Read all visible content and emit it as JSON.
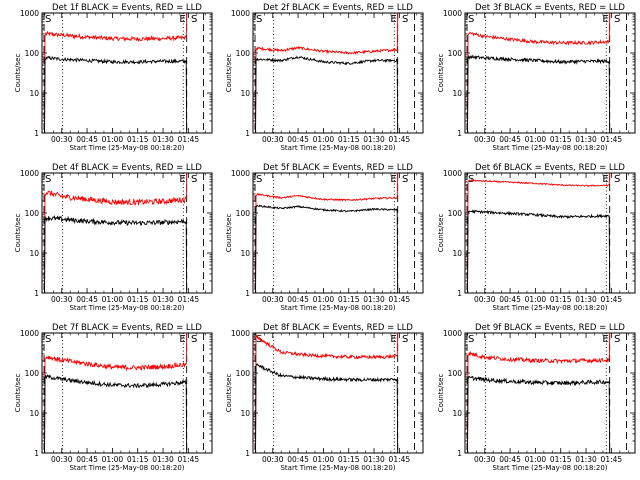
{
  "chart_data": [
    {
      "type": "line",
      "title": "Det 1f BLACK = Events, RED = LLD",
      "xlabel": "Start Time (25-May-08 00:18:20)",
      "ylabel": "Counts/sec",
      "yscale": "log",
      "ylim": [
        1,
        1000
      ],
      "xlim_minutes": [
        18.3,
        119
      ],
      "x_tick_labels": [
        "00:30",
        "00:45",
        "01:00",
        "01:15",
        "01:30",
        "01:45"
      ],
      "y_tick_labels": [
        "1",
        "10",
        "100",
        "1000"
      ],
      "markers": {
        "E": 104,
        "S": 106
      },
      "series": [
        {
          "color": "#ff0000",
          "profile": [
            [
              22,
              300
            ],
            [
              30,
              280
            ],
            [
              45,
              250
            ],
            [
              60,
              230
            ],
            [
              75,
              225
            ],
            [
              90,
              230
            ],
            [
              102,
              240
            ]
          ],
          "noise": 0.05
        },
        {
          "color": "#000000",
          "profile": [
            [
              22,
              75
            ],
            [
              30,
              70
            ],
            [
              45,
              65
            ],
            [
              60,
              60
            ],
            [
              75,
              60
            ],
            [
              90,
              62
            ],
            [
              102,
              62
            ]
          ],
          "noise": 0.04
        }
      ]
    },
    {
      "type": "line",
      "title": "Det 2f BLACK = Events, RED = LLD",
      "xlabel": "Start Time (25-May-08 00:18:20)",
      "ylabel": "Counts/sec",
      "yscale": "log",
      "ylim": [
        1,
        1000
      ],
      "xlim_minutes": [
        18.3,
        119
      ],
      "x_tick_labels": [
        "00:30",
        "00:45",
        "01:00",
        "01:15",
        "01:30",
        "01:45"
      ],
      "y_tick_labels": [
        "1",
        "10",
        "100",
        "1000"
      ],
      "markers": {
        "E": 104,
        "S": 106
      },
      "series": [
        {
          "color": "#ff0000",
          "profile": [
            [
              22,
              130
            ],
            [
              35,
              115
            ],
            [
              45,
              135
            ],
            [
              60,
              110
            ],
            [
              75,
              100
            ],
            [
              90,
              110
            ],
            [
              102,
              120
            ]
          ],
          "noise": 0.03
        },
        {
          "color": "#000000",
          "profile": [
            [
              22,
              70
            ],
            [
              35,
              65
            ],
            [
              45,
              80
            ],
            [
              60,
              60
            ],
            [
              75,
              55
            ],
            [
              90,
              65
            ],
            [
              102,
              65
            ]
          ],
          "noise": 0.03
        }
      ]
    },
    {
      "type": "line",
      "title": "Det 3f BLACK = Events, RED = LLD",
      "xlabel": "Start Time (25-May-08 00:18:20)",
      "ylabel": "Counts/sec",
      "yscale": "log",
      "ylim": [
        1,
        1000
      ],
      "xlim_minutes": [
        18.3,
        119
      ],
      "x_tick_labels": [
        "00:30",
        "00:45",
        "01:00",
        "01:15",
        "01:30",
        "01:45"
      ],
      "y_tick_labels": [
        "1",
        "10",
        "100",
        "1000"
      ],
      "markers": {
        "E": 104,
        "S": 106
      },
      "series": [
        {
          "color": "#ff0000",
          "profile": [
            [
              22,
              310
            ],
            [
              30,
              260
            ],
            [
              45,
              220
            ],
            [
              60,
              190
            ],
            [
              75,
              180
            ],
            [
              90,
              180
            ],
            [
              102,
              190
            ]
          ],
          "noise": 0.04
        },
        {
          "color": "#000000",
          "profile": [
            [
              22,
              80
            ],
            [
              30,
              75
            ],
            [
              45,
              70
            ],
            [
              60,
              65
            ],
            [
              75,
              60
            ],
            [
              90,
              62
            ],
            [
              102,
              62
            ]
          ],
          "noise": 0.04
        }
      ]
    },
    {
      "type": "line",
      "title": "Det 4f BLACK = Events, RED = LLD",
      "xlabel": "Start Time (25-May-08 00:18:20)",
      "ylabel": "Counts/sec",
      "yscale": "log",
      "ylim": [
        1,
        1000
      ],
      "xlim_minutes": [
        18.3,
        119
      ],
      "x_tick_labels": [
        "00:30",
        "00:45",
        "01:00",
        "01:15",
        "01:30",
        "01:45"
      ],
      "y_tick_labels": [
        "1",
        "10",
        "100",
        "1000"
      ],
      "markers": {
        "E": 104,
        "S": 106
      },
      "series": [
        {
          "color": "#ff0000",
          "profile": [
            [
              22,
              320
            ],
            [
              30,
              260
            ],
            [
              45,
              220
            ],
            [
              60,
              190
            ],
            [
              75,
              185
            ],
            [
              90,
              195
            ],
            [
              102,
              215
            ]
          ],
          "noise": 0.07
        },
        {
          "color": "#000000",
          "profile": [
            [
              22,
              75
            ],
            [
              30,
              70
            ],
            [
              45,
              62
            ],
            [
              60,
              58
            ],
            [
              75,
              56
            ],
            [
              90,
              58
            ],
            [
              102,
              62
            ]
          ],
          "noise": 0.06
        }
      ]
    },
    {
      "type": "line",
      "title": "Det 5f BLACK = Events, RED = LLD",
      "xlabel": "Start Time (25-May-08 00:18:20)",
      "ylabel": "Counts/sec",
      "yscale": "log",
      "ylim": [
        1,
        1000
      ],
      "xlim_minutes": [
        18.3,
        119
      ],
      "x_tick_labels": [
        "00:30",
        "00:45",
        "01:00",
        "01:15",
        "01:30",
        "01:45"
      ],
      "y_tick_labels": [
        "1",
        "10",
        "100",
        "1000"
      ],
      "markers": {
        "E": 104,
        "S": 106
      },
      "series": [
        {
          "color": "#ff0000",
          "profile": [
            [
              22,
              290
            ],
            [
              35,
              240
            ],
            [
              45,
              270
            ],
            [
              60,
              220
            ],
            [
              75,
              210
            ],
            [
              90,
              230
            ],
            [
              102,
              240
            ]
          ],
          "noise": 0.02
        },
        {
          "color": "#000000",
          "profile": [
            [
              22,
              150
            ],
            [
              35,
              130
            ],
            [
              45,
              145
            ],
            [
              60,
              120
            ],
            [
              75,
              110
            ],
            [
              90,
              125
            ],
            [
              102,
              120
            ]
          ],
          "noise": 0.02
        }
      ]
    },
    {
      "type": "line",
      "title": "Det 6f BLACK = Events, RED = LLD",
      "xlabel": "Start Time (25-May-08 00:18:20)",
      "ylabel": "Counts/sec",
      "yscale": "log",
      "ylim": [
        1,
        1000
      ],
      "xlim_minutes": [
        18.3,
        119
      ],
      "x_tick_labels": [
        "00:30",
        "00:45",
        "01:00",
        "01:15",
        "01:30",
        "01:45"
      ],
      "y_tick_labels": [
        "1",
        "10",
        "100",
        "1000"
      ],
      "markers": {
        "E": 104,
        "S": 106
      },
      "series": [
        {
          "color": "#ff0000",
          "profile": [
            [
              22,
              650
            ],
            [
              40,
              600
            ],
            [
              60,
              550
            ],
            [
              75,
              500
            ],
            [
              90,
              480
            ],
            [
              102,
              490
            ]
          ],
          "noise": 0.015
        },
        {
          "color": "#000000",
          "profile": [
            [
              22,
              110
            ],
            [
              40,
              100
            ],
            [
              60,
              90
            ],
            [
              75,
              80
            ],
            [
              90,
              82
            ],
            [
              102,
              85
            ]
          ],
          "noise": 0.03
        }
      ]
    },
    {
      "type": "line",
      "title": "Det 7f BLACK = Events, RED = LLD",
      "xlabel": "Start Time (25-May-08 00:18:20)",
      "ylabel": "Counts/sec",
      "yscale": "log",
      "ylim": [
        1,
        1000
      ],
      "xlim_minutes": [
        18.3,
        119
      ],
      "x_tick_labels": [
        "00:30",
        "00:45",
        "01:00",
        "01:15",
        "01:30",
        "01:45"
      ],
      "y_tick_labels": [
        "1",
        "10",
        "100",
        "1000"
      ],
      "markers": {
        "E": 104,
        "S": 106
      },
      "series": [
        {
          "color": "#ff0000",
          "profile": [
            [
              22,
              250
            ],
            [
              30,
              210
            ],
            [
              45,
              170
            ],
            [
              60,
              140
            ],
            [
              75,
              135
            ],
            [
              90,
              145
            ],
            [
              102,
              160
            ]
          ],
          "noise": 0.06
        },
        {
          "color": "#000000",
          "profile": [
            [
              22,
              80
            ],
            [
              30,
              70
            ],
            [
              45,
              58
            ],
            [
              60,
              50
            ],
            [
              75,
              48
            ],
            [
              90,
              52
            ],
            [
              102,
              58
            ]
          ],
          "noise": 0.05
        }
      ]
    },
    {
      "type": "line",
      "title": "Det 8f BLACK = Events, RED = LLD",
      "xlabel": "Start Time (25-May-08 00:18:20)",
      "ylabel": "Counts/sec",
      "yscale": "log",
      "ylim": [
        1,
        1000
      ],
      "xlim_minutes": [
        18.3,
        119
      ],
      "x_tick_labels": [
        "00:30",
        "00:45",
        "01:00",
        "01:15",
        "01:30",
        "01:45"
      ],
      "y_tick_labels": [
        "1",
        "10",
        "100",
        "1000"
      ],
      "markers": {
        "E": 104,
        "S": 106
      },
      "series": [
        {
          "color": "#ff0000",
          "profile": [
            [
              19,
              900
            ],
            [
              25,
              600
            ],
            [
              35,
              330
            ],
            [
              50,
              280
            ],
            [
              65,
              260
            ],
            [
              80,
              250
            ],
            [
              95,
              250
            ],
            [
              102,
              260
            ]
          ],
          "noise": 0.04
        },
        {
          "color": "#000000",
          "profile": [
            [
              19,
              180
            ],
            [
              25,
              130
            ],
            [
              35,
              85
            ],
            [
              50,
              75
            ],
            [
              65,
              70
            ],
            [
              80,
              68
            ],
            [
              95,
              68
            ],
            [
              102,
              70
            ]
          ],
          "noise": 0.04
        }
      ]
    },
    {
      "type": "line",
      "title": "Det 9f BLACK = Events, RED = LLD",
      "xlabel": "Start Time (25-May-08 00:18:20)",
      "ylabel": "Counts/sec",
      "yscale": "log",
      "ylim": [
        1,
        1000
      ],
      "xlim_minutes": [
        18.3,
        119
      ],
      "x_tick_labels": [
        "00:30",
        "00:45",
        "01:00",
        "01:15",
        "01:30",
        "01:45"
      ],
      "y_tick_labels": [
        "1",
        "10",
        "100",
        "1000"
      ],
      "markers": {
        "E": 104,
        "S": 106
      },
      "series": [
        {
          "color": "#ff0000",
          "profile": [
            [
              22,
              300
            ],
            [
              30,
              250
            ],
            [
              45,
              220
            ],
            [
              60,
              205
            ],
            [
              75,
              200
            ],
            [
              90,
              205
            ],
            [
              102,
              210
            ]
          ],
          "noise": 0.05
        },
        {
          "color": "#000000",
          "profile": [
            [
              22,
              75
            ],
            [
              30,
              68
            ],
            [
              45,
              62
            ],
            [
              60,
              58
            ],
            [
              75,
              56
            ],
            [
              90,
              58
            ],
            [
              102,
              60
            ]
          ],
          "noise": 0.05
        }
      ]
    }
  ]
}
